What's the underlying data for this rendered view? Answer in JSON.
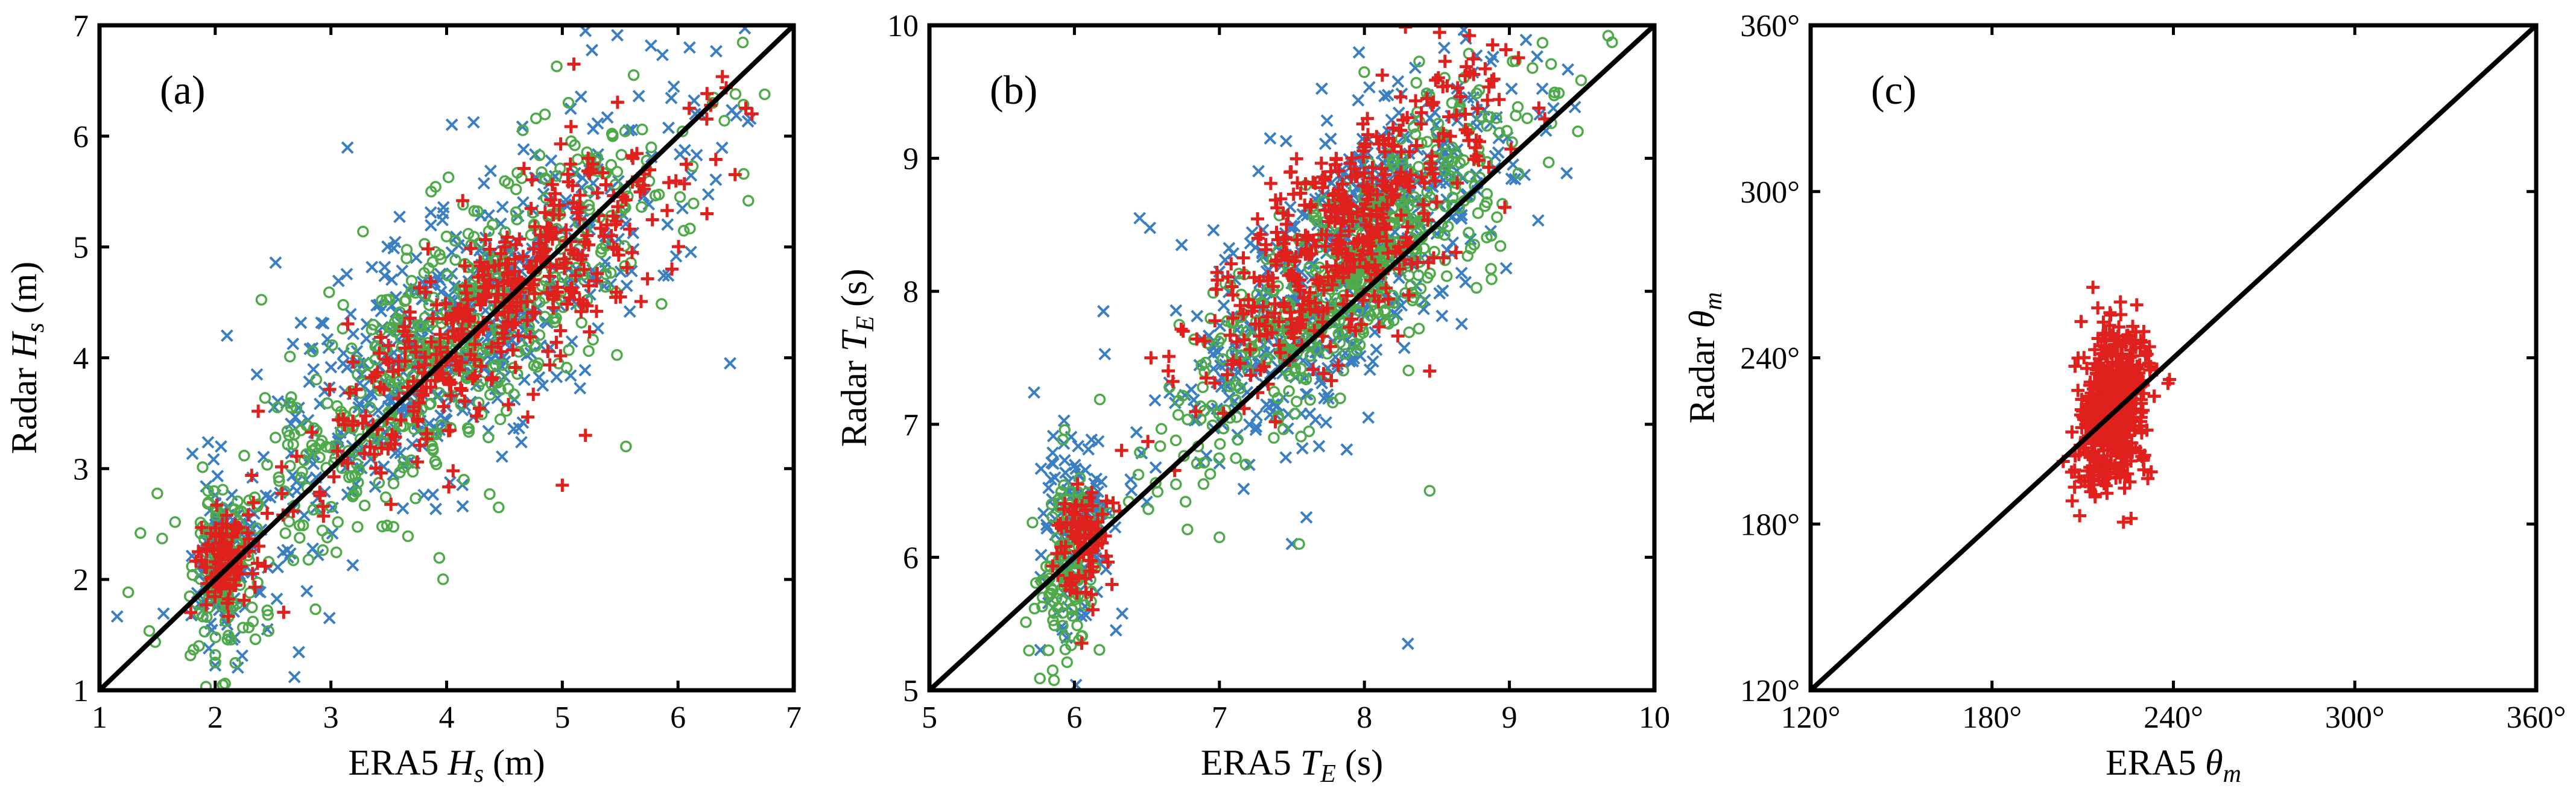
{
  "chart_data": [
    {
      "type": "scatter",
      "panel_label": "(a)",
      "xlabel": {
        "prefix": "ERA5 ",
        "symbol": "H",
        "sub": "s",
        "suffix": " (m)"
      },
      "ylabel": {
        "prefix": "Radar ",
        "symbol": "H",
        "sub": "s",
        "suffix": " (m)"
      },
      "xlim": [
        1,
        7
      ],
      "ylim": [
        1,
        7
      ],
      "xticks": [
        1,
        2,
        3,
        4,
        5,
        6,
        7
      ],
      "yticks": [
        1,
        2,
        3,
        4,
        5,
        6,
        7
      ],
      "xtick_labels": [
        "1",
        "2",
        "3",
        "4",
        "5",
        "6",
        "7"
      ],
      "ytick_labels": [
        "1",
        "2",
        "3",
        "4",
        "5",
        "6",
        "7"
      ],
      "diagonal": [
        [
          1,
          1
        ],
        [
          7,
          7
        ]
      ],
      "series": [
        {
          "name": "blue-x",
          "marker": "x",
          "color": "#3a7fc1",
          "n": 700,
          "clusters": [
            {
              "w": 0.18,
              "cx": 2.05,
              "cy": 2.15,
              "sx": 0.12,
              "sy": 0.35,
              "rho": 0.1
            },
            {
              "w": 0.82,
              "cx": 4.1,
              "cy": 4.25,
              "sx": 0.95,
              "sy": 1.05,
              "rho": 0.8
            }
          ],
          "extra": [
            [
              6.45,
              3.95
            ],
            [
              5.2,
              6.95
            ],
            [
              6.1,
              6.8
            ],
            [
              2.05,
              3.2
            ],
            [
              2.45,
              1.55
            ]
          ]
        },
        {
          "name": "green-o",
          "marker": "o",
          "color": "#4faa4a",
          "n": 700,
          "clusters": [
            {
              "w": 0.18,
              "cx": 2.05,
              "cy": 2.0,
              "sx": 0.12,
              "sy": 0.35,
              "rho": 0.1
            },
            {
              "w": 0.82,
              "cx": 4.05,
              "cy": 4.15,
              "sx": 0.95,
              "sy": 1.0,
              "rho": 0.8
            }
          ],
          "extra": [
            [
              2.0,
              1.25
            ],
            [
              6.3,
              6.3
            ],
            [
              5.55,
              3.2
            ],
            [
              4.45,
              2.65
            ]
          ]
        },
        {
          "name": "red-plus",
          "marker": "+",
          "color": "#e0201d",
          "n": 520,
          "clusters": [
            {
              "w": 0.2,
              "cx": 2.1,
              "cy": 2.2,
              "sx": 0.12,
              "sy": 0.22,
              "rho": 0.2
            },
            {
              "w": 0.8,
              "cx": 4.4,
              "cy": 4.4,
              "sx": 0.85,
              "sy": 0.8,
              "rho": 0.85
            }
          ],
          "extra": [
            [
              5.1,
              6.65
            ],
            [
              6.25,
              5.3
            ],
            [
              5.0,
              2.85
            ],
            [
              5.2,
              3.3
            ]
          ]
        }
      ]
    },
    {
      "type": "scatter",
      "panel_label": "(b)",
      "xlabel": {
        "prefix": "ERA5 ",
        "symbol": "T",
        "sub": "E",
        "suffix": " (s)"
      },
      "ylabel": {
        "prefix": "Radar ",
        "symbol": "T",
        "sub": "E",
        "suffix": " (s)"
      },
      "xlim": [
        5,
        10
      ],
      "ylim": [
        5,
        10
      ],
      "xticks": [
        5,
        6,
        7,
        8,
        9,
        10
      ],
      "yticks": [
        5,
        6,
        7,
        8,
        9,
        10
      ],
      "xtick_labels": [
        "5",
        "6",
        "7",
        "8",
        "9",
        "10"
      ],
      "ytick_labels": [
        "5",
        "6",
        "7",
        "8",
        "9",
        "10"
      ],
      "diagonal": [
        [
          5,
          5
        ],
        [
          10,
          10
        ]
      ],
      "series": [
        {
          "name": "blue-x",
          "marker": "x",
          "color": "#3a7fc1",
          "n": 700,
          "clusters": [
            {
              "w": 0.18,
              "cx": 6.0,
              "cy": 6.15,
              "sx": 0.12,
              "sy": 0.45,
              "rho": 0.1
            },
            {
              "w": 0.82,
              "cx": 7.9,
              "cy": 8.25,
              "sx": 0.6,
              "sy": 0.75,
              "rho": 0.75
            }
          ],
          "extra": [
            [
              8.3,
              5.35
            ],
            [
              6.45,
              8.55
            ],
            [
              6.2,
              7.85
            ],
            [
              7.5,
              6.1
            ],
            [
              7.6,
              6.3
            ],
            [
              8.7,
              9.9
            ]
          ]
        },
        {
          "name": "green-o",
          "marker": "o",
          "color": "#4faa4a",
          "n": 700,
          "clusters": [
            {
              "w": 0.18,
              "cx": 5.95,
              "cy": 5.95,
              "sx": 0.1,
              "sy": 0.35,
              "rho": 0.1
            },
            {
              "w": 0.82,
              "cx": 7.9,
              "cy": 8.15,
              "sx": 0.6,
              "sy": 0.7,
              "rho": 0.8
            }
          ],
          "extra": [
            [
              5.85,
              5.15
            ],
            [
              8.45,
              6.5
            ],
            [
              7.0,
              6.15
            ],
            [
              7.55,
              6.1
            ]
          ]
        },
        {
          "name": "red-plus",
          "marker": "+",
          "color": "#e0201d",
          "n": 520,
          "clusters": [
            {
              "w": 0.18,
              "cx": 6.05,
              "cy": 6.15,
              "sx": 0.1,
              "sy": 0.25,
              "rho": 0.2
            },
            {
              "w": 0.82,
              "cx": 7.9,
              "cy": 8.45,
              "sx": 0.5,
              "sy": 0.6,
              "rho": 0.75
            }
          ],
          "extra": [
            [
              8.45,
              7.4
            ],
            [
              6.75,
              7.7
            ]
          ]
        }
      ]
    },
    {
      "type": "scatter",
      "panel_label": "(c)",
      "xlabel": {
        "prefix": "ERA5 ",
        "symbol": "θ",
        "sub": "m",
        "suffix": ""
      },
      "ylabel": {
        "prefix": "Radar ",
        "symbol": "θ",
        "sub": "m",
        "suffix": ""
      },
      "xlim": [
        120,
        360
      ],
      "ylim": [
        120,
        360
      ],
      "xticks": [
        120,
        180,
        240,
        300,
        360
      ],
      "yticks": [
        120,
        180,
        240,
        300,
        360
      ],
      "xtick_labels": [
        "120°",
        "180°",
        "240°",
        "300°",
        "360°"
      ],
      "ytick_labels": [
        "120°",
        "180°",
        "240°",
        "300°",
        "360°"
      ],
      "diagonal": [
        [
          120,
          120
        ],
        [
          360,
          360
        ]
      ],
      "series": [
        {
          "name": "red-plus",
          "marker": "+",
          "color": "#e0201d",
          "n": 600,
          "clusters": [
            {
              "w": 1.0,
              "cx": 220,
              "cy": 222,
              "sx": 5.5,
              "sy": 14,
              "rho": 0.25
            }
          ],
          "extra": [
            [
              215,
              258
            ],
            [
              226,
              182
            ],
            [
              209,
              183
            ]
          ]
        }
      ]
    }
  ]
}
